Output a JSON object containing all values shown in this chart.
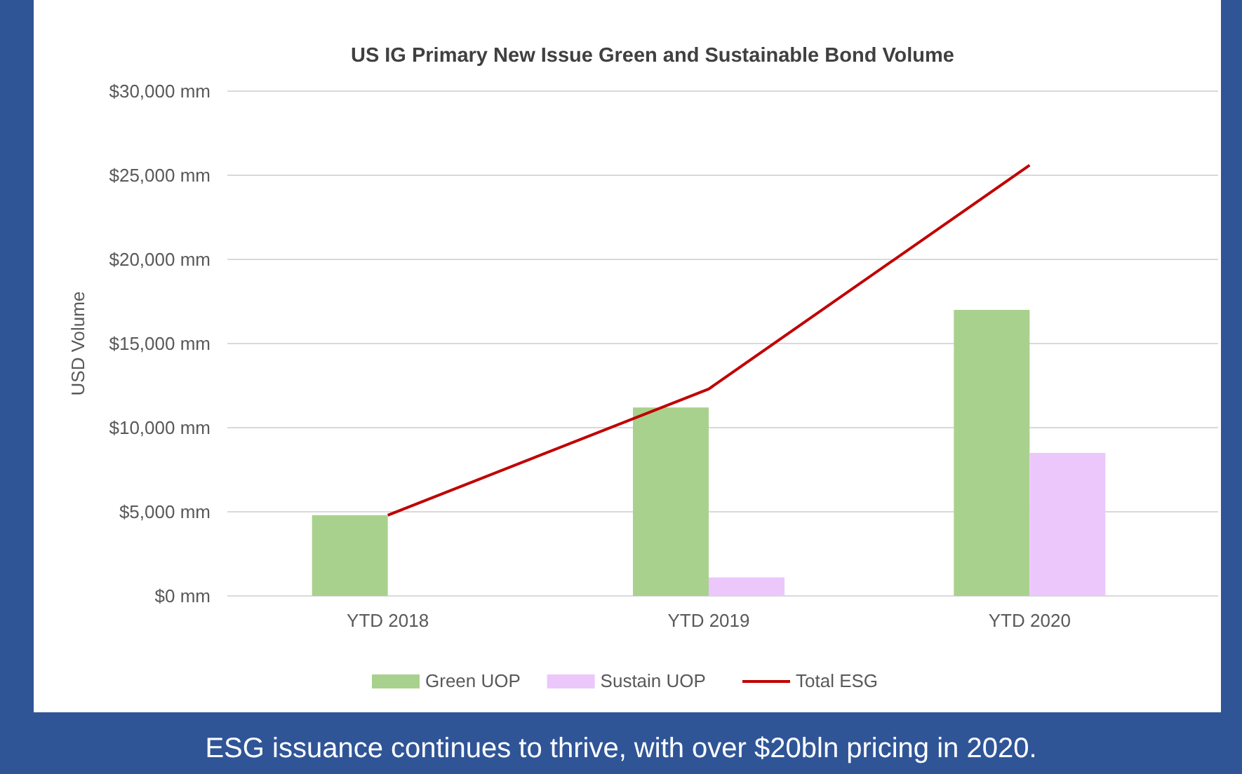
{
  "chart_data": {
    "type": "bar",
    "title": "US IG Primary New Issue Green and Sustainable Bond Volume",
    "ylabel": "USD Volume",
    "categories": [
      "YTD 2018",
      "YTD 2019",
      "YTD 2020"
    ],
    "series": [
      {
        "name": "Green UOP",
        "color": "#a9d18e",
        "values": [
          4800,
          11200,
          17000
        ]
      },
      {
        "name": "Sustain UOP",
        "color": "#ebc7fc",
        "values": [
          null,
          1100,
          8500
        ]
      },
      {
        "name": "Total ESG",
        "type": "line",
        "color": "#c00000",
        "values": [
          4800,
          12300,
          25600
        ]
      }
    ],
    "ylim": [
      0,
      30000
    ],
    "yticks": [
      {
        "value": 0,
        "label": "$0 mm"
      },
      {
        "value": 5000,
        "label": "$5,000 mm"
      },
      {
        "value": 10000,
        "label": "$10,000 mm"
      },
      {
        "value": 15000,
        "label": "$15,000 mm"
      },
      {
        "value": 20000,
        "label": "$20,000 mm"
      },
      {
        "value": 25000,
        "label": "$25,000 mm"
      },
      {
        "value": 30000,
        "label": "$30,000 mm"
      }
    ],
    "grid": "y",
    "legend": "bottom",
    "annotations": [
      "ESG issuance continues to thrive, with over $20bln pricing in 2020."
    ]
  }
}
